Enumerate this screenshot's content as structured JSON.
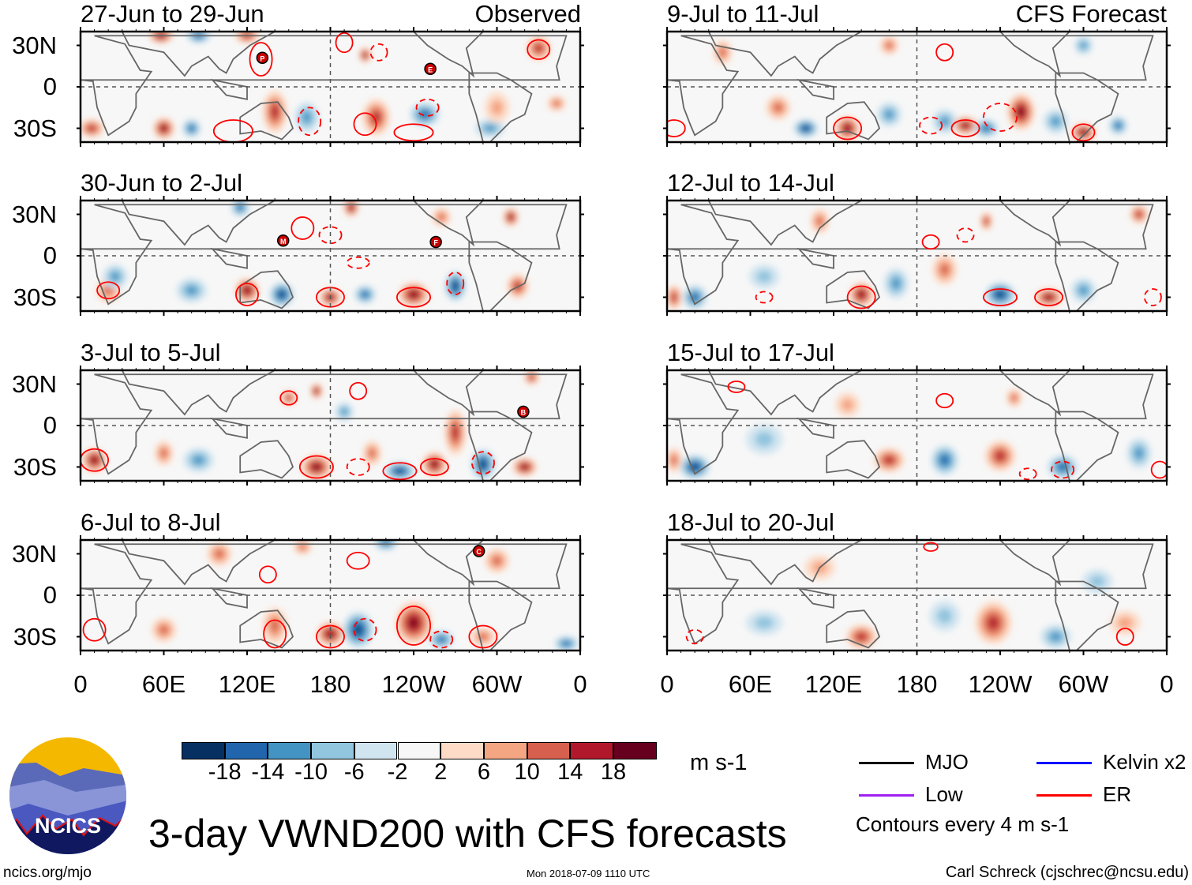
{
  "header": {
    "observed_label": "Observed",
    "forecast_label": "CFS Forecast"
  },
  "axes": {
    "lat_labels": [
      "30N",
      "0",
      "30S"
    ],
    "lon_labels": [
      "0",
      "60E",
      "120E",
      "180",
      "120W",
      "60W",
      "0"
    ]
  },
  "colorbar": {
    "ticks": [
      "-18",
      "-14",
      "-10",
      "-6",
      "-2",
      "2",
      "6",
      "10",
      "14",
      "18"
    ],
    "units": "m s-1",
    "colors": [
      "#053061",
      "#2166ac",
      "#4393c3",
      "#92c5de",
      "#d1e5f0",
      "#f7f7f7",
      "#fddbc7",
      "#f4a582",
      "#d6604d",
      "#b2182b",
      "#67001f"
    ]
  },
  "legend": {
    "items": [
      {
        "label": "MJO",
        "color": "#000000"
      },
      {
        "label": "Kelvin x2",
        "color": "#0000ff"
      },
      {
        "label": "Low",
        "color": "#a020f0"
      },
      {
        "label": "ER",
        "color": "#ff0000"
      }
    ],
    "note": "Contours every 4 m s-1"
  },
  "footer": {
    "logo_text": "NCICS",
    "title": "3-day VWND200 with CFS forecasts",
    "url": "ncics.org/mjo",
    "timestamp": "Mon 2018-07-09 1110 UTC",
    "author": "Carl Schreck (cjschrec@ncsu.edu)"
  },
  "chart_data": {
    "type": "heatmap",
    "variable": "VWND200 anomaly",
    "units": "m s-1",
    "lon_range": [
      0,
      360
    ],
    "lat_range": [
      -40,
      40
    ],
    "panels": [
      {
        "title": "27-Jun to 29-Jun",
        "kind": "observed",
        "anomalies": [
          [
            60,
            -30,
            20,
            7,
            7
          ],
          [
            80,
            -30,
            -16,
            6,
            6
          ],
          [
            8,
            -30,
            16,
            8,
            6
          ],
          [
            140,
            -18,
            14,
            8,
            14
          ],
          [
            163,
            -22,
            -12,
            8,
            10
          ],
          [
            213,
            -22,
            16,
            9,
            12
          ],
          [
            248,
            -20,
            -16,
            10,
            8
          ],
          [
            295,
            -30,
            -12,
            10,
            6
          ],
          [
            343,
            -12,
            12,
            6,
            5
          ],
          [
            85,
            37,
            -16,
            8,
            5
          ],
          [
            58,
            37,
            18,
            8,
            5
          ],
          [
            205,
            23,
            18,
            4,
            5
          ],
          [
            330,
            28,
            14,
            8,
            8
          ],
          [
            300,
            -15,
            8,
            8,
            10
          ],
          [
            120,
            37,
            16,
            8,
            5
          ]
        ],
        "contours": [
          [
            205,
            -27,
            8,
            8,
            0
          ],
          [
            110,
            -32,
            14,
            8,
            0
          ],
          [
            165,
            -25,
            8,
            10,
            1
          ],
          [
            250,
            -15,
            8,
            6,
            1
          ],
          [
            240,
            -33,
            14,
            6,
            0
          ],
          [
            190,
            32,
            6,
            7,
            0
          ],
          [
            215,
            25,
            6,
            6,
            1
          ],
          [
            330,
            27,
            8,
            7,
            0
          ],
          [
            130,
            20,
            8,
            12,
            0
          ]
        ],
        "storms": [
          [
            131,
            21,
            "P"
          ],
          [
            252,
            13,
            "E"
          ]
        ]
      },
      {
        "title": "30-Jun to 2-Jul",
        "kind": "observed",
        "anomalies": [
          [
            120,
            -25,
            18,
            8,
            8
          ],
          [
            145,
            -28,
            -18,
            8,
            8
          ],
          [
            180,
            -30,
            20,
            7,
            6
          ],
          [
            205,
            -28,
            -16,
            7,
            6
          ],
          [
            240,
            -28,
            20,
            10,
            8
          ],
          [
            270,
            -22,
            -18,
            7,
            10
          ],
          [
            315,
            -22,
            16,
            7,
            8
          ],
          [
            80,
            -25,
            -12,
            10,
            8
          ],
          [
            20,
            -25,
            10,
            8,
            8
          ],
          [
            115,
            35,
            -16,
            6,
            6
          ],
          [
            195,
            35,
            18,
            5,
            6
          ],
          [
            310,
            28,
            18,
            5,
            6
          ],
          [
            260,
            28,
            12,
            6,
            6
          ],
          [
            25,
            -15,
            -10,
            8,
            8
          ]
        ],
        "contours": [
          [
            120,
            -28,
            8,
            8,
            0
          ],
          [
            180,
            -30,
            10,
            7,
            0
          ],
          [
            240,
            -30,
            12,
            7,
            0
          ],
          [
            20,
            -25,
            8,
            6,
            0
          ],
          [
            180,
            15,
            8,
            6,
            1
          ],
          [
            270,
            -20,
            6,
            8,
            1
          ],
          [
            160,
            20,
            8,
            8,
            0
          ],
          [
            200,
            -5,
            8,
            4,
            1
          ]
        ],
        "storms": [
          [
            146,
            11,
            "M"
          ],
          [
            256,
            10,
            "F"
          ]
        ]
      },
      {
        "title": "3-Jul to 5-Jul",
        "kind": "observed",
        "anomalies": [
          [
            10,
            -25,
            18,
            8,
            8
          ],
          [
            170,
            -30,
            20,
            10,
            8
          ],
          [
            230,
            -33,
            -18,
            10,
            6
          ],
          [
            255,
            -28,
            20,
            8,
            8
          ],
          [
            290,
            -28,
            -18,
            8,
            10
          ],
          [
            320,
            -30,
            18,
            8,
            6
          ],
          [
            270,
            -5,
            14,
            7,
            15
          ],
          [
            85,
            -25,
            -12,
            10,
            8
          ],
          [
            60,
            -20,
            10,
            6,
            8
          ],
          [
            210,
            -20,
            10,
            6,
            8
          ],
          [
            150,
            20,
            16,
            5,
            5
          ],
          [
            170,
            25,
            20,
            4,
            5
          ],
          [
            325,
            35,
            16,
            5,
            5
          ],
          [
            190,
            10,
            -10,
            6,
            6
          ]
        ],
        "contours": [
          [
            170,
            -30,
            12,
            8,
            0
          ],
          [
            230,
            -33,
            12,
            6,
            0
          ],
          [
            200,
            -30,
            8,
            6,
            1
          ],
          [
            255,
            -30,
            10,
            6,
            0
          ],
          [
            290,
            -27,
            8,
            8,
            1
          ],
          [
            150,
            20,
            6,
            5,
            0
          ],
          [
            200,
            25,
            6,
            6,
            0
          ],
          [
            10,
            -25,
            10,
            8,
            0
          ]
        ],
        "storms": [
          [
            319,
            10,
            "B"
          ]
        ]
      },
      {
        "title": "6-Jul to 8-Jul",
        "kind": "observed",
        "anomalies": [
          [
            180,
            -28,
            20,
            9,
            8
          ],
          [
            200,
            -25,
            -18,
            10,
            12
          ],
          [
            240,
            -20,
            18,
            12,
            14
          ],
          [
            260,
            -32,
            -14,
            8,
            6
          ],
          [
            290,
            -30,
            12,
            8,
            6
          ],
          [
            140,
            -22,
            12,
            8,
            12
          ],
          [
            60,
            -25,
            10,
            8,
            8
          ],
          [
            100,
            30,
            10,
            8,
            8
          ],
          [
            220,
            38,
            -14,
            8,
            5
          ],
          [
            160,
            35,
            12,
            6,
            5
          ],
          [
            300,
            25,
            10,
            8,
            8
          ],
          [
            350,
            -35,
            -14,
            8,
            5
          ]
        ],
        "contours": [
          [
            180,
            -30,
            10,
            8,
            0
          ],
          [
            240,
            -22,
            12,
            14,
            0
          ],
          [
            205,
            -25,
            8,
            8,
            1
          ],
          [
            290,
            -30,
            10,
            8,
            0
          ],
          [
            140,
            -28,
            8,
            10,
            0
          ],
          [
            10,
            -25,
            8,
            8,
            0
          ],
          [
            135,
            15,
            6,
            6,
            0
          ],
          [
            200,
            25,
            8,
            6,
            0
          ],
          [
            260,
            -32,
            8,
            6,
            1
          ]
        ],
        "storms": [
          [
            287,
            32,
            "C"
          ]
        ]
      },
      {
        "title": "9-Jul to 11-Jul",
        "kind": "forecast",
        "anomalies": [
          [
            100,
            -30,
            -18,
            8,
            6
          ],
          [
            130,
            -30,
            20,
            8,
            8
          ],
          [
            80,
            -15,
            10,
            8,
            8
          ],
          [
            200,
            -25,
            -12,
            8,
            8
          ],
          [
            215,
            -28,
            18,
            8,
            6
          ],
          [
            230,
            -30,
            -16,
            8,
            6
          ],
          [
            255,
            -18,
            20,
            9,
            12
          ],
          [
            280,
            -25,
            -12,
            8,
            8
          ],
          [
            300,
            -33,
            18,
            8,
            6
          ],
          [
            325,
            -28,
            -14,
            6,
            6
          ],
          [
            160,
            -20,
            -10,
            8,
            8
          ],
          [
            40,
            25,
            10,
            6,
            8
          ],
          [
            160,
            30,
            12,
            6,
            6
          ],
          [
            300,
            30,
            -12,
            6,
            6
          ]
        ],
        "contours": [
          [
            130,
            -30,
            10,
            8,
            0
          ],
          [
            215,
            -30,
            10,
            6,
            0
          ],
          [
            300,
            -33,
            8,
            6,
            0
          ],
          [
            240,
            -22,
            12,
            10,
            1
          ],
          [
            190,
            -28,
            8,
            6,
            1
          ],
          [
            200,
            25,
            6,
            6,
            0
          ],
          [
            5,
            -30,
            8,
            6,
            0
          ]
        ],
        "storms": []
      },
      {
        "title": "12-Jul to 14-Jul",
        "kind": "forecast",
        "anomalies": [
          [
            20,
            -30,
            -16,
            8,
            8
          ],
          [
            5,
            -30,
            16,
            5,
            8
          ],
          [
            140,
            -28,
            18,
            8,
            8
          ],
          [
            165,
            -20,
            -10,
            8,
            10
          ],
          [
            240,
            -28,
            -18,
            10,
            8
          ],
          [
            275,
            -30,
            20,
            9,
            6
          ],
          [
            300,
            -25,
            -10,
            8,
            8
          ],
          [
            110,
            25,
            10,
            6,
            8
          ],
          [
            230,
            25,
            16,
            4,
            6
          ],
          [
            340,
            30,
            14,
            6,
            6
          ],
          [
            70,
            -15,
            -8,
            10,
            8
          ],
          [
            200,
            -10,
            10,
            8,
            10
          ]
        ],
        "contours": [
          [
            140,
            -30,
            10,
            8,
            0
          ],
          [
            240,
            -30,
            12,
            6,
            0
          ],
          [
            275,
            -30,
            10,
            6,
            0
          ],
          [
            190,
            10,
            6,
            5,
            0
          ],
          [
            215,
            15,
            6,
            5,
            1
          ],
          [
            70,
            -30,
            6,
            4,
            1
          ],
          [
            350,
            -30,
            6,
            6,
            1
          ]
        ],
        "storms": []
      },
      {
        "title": "15-Jul to 17-Jul",
        "kind": "forecast",
        "anomalies": [
          [
            20,
            -30,
            -18,
            10,
            8
          ],
          [
            5,
            -25,
            12,
            5,
            8
          ],
          [
            160,
            -25,
            14,
            10,
            8
          ],
          [
            200,
            -25,
            -14,
            9,
            10
          ],
          [
            240,
            -22,
            14,
            10,
            10
          ],
          [
            285,
            -30,
            -14,
            10,
            8
          ],
          [
            340,
            -20,
            -12,
            8,
            10
          ],
          [
            250,
            20,
            12,
            5,
            6
          ],
          [
            70,
            -10,
            -6,
            12,
            10
          ],
          [
            130,
            15,
            8,
            8,
            8
          ]
        ],
        "contours": [
          [
            200,
            18,
            6,
            5,
            0
          ],
          [
            285,
            -32,
            8,
            6,
            1
          ],
          [
            355,
            -32,
            6,
            6,
            0
          ],
          [
            260,
            -35,
            6,
            4,
            1
          ],
          [
            50,
            28,
            6,
            4,
            0
          ]
        ],
        "storms": []
      },
      {
        "title": "18-Jul to 20-Jul",
        "kind": "forecast",
        "anomalies": [
          [
            140,
            -30,
            14,
            10,
            8
          ],
          [
            235,
            -20,
            16,
            12,
            14
          ],
          [
            280,
            -30,
            -12,
            10,
            8
          ],
          [
            70,
            -20,
            -8,
            12,
            8
          ],
          [
            310,
            10,
            -8,
            10,
            8
          ],
          [
            330,
            -20,
            8,
            10,
            8
          ],
          [
            200,
            -15,
            -8,
            10,
            10
          ],
          [
            110,
            20,
            6,
            10,
            8
          ]
        ],
        "contours": [
          [
            20,
            -30,
            6,
            5,
            1
          ],
          [
            330,
            -30,
            6,
            6,
            0
          ],
          [
            190,
            35,
            5,
            3,
            0
          ]
        ],
        "storms": []
      }
    ]
  }
}
